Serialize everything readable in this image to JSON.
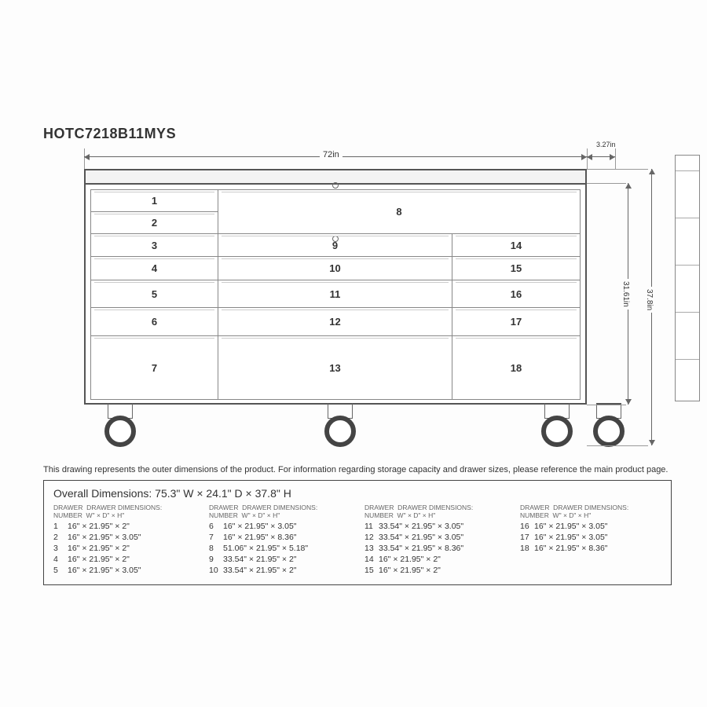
{
  "model": "HOTC7218B11MYS",
  "dims": {
    "top_main": "72in",
    "top_side": "3.27in",
    "right_inner": "31.61in",
    "right_outer": "37.8in"
  },
  "note": "This drawing represents the outer dimensions of the product. For information regarding storage capacity and drawer sizes, please reference the main product page.",
  "overall": "Overall Dimensions: 75.3\" W × 24.1\" D × 37.8\" H",
  "col_header": "DRAWER  DRAWER DIMENSIONS:\nNUMBER  W\" × D\" × H\"",
  "drawers": [
    {
      "n": "1",
      "d": "16\" × 21.95\" × 2\""
    },
    {
      "n": "2",
      "d": "16\" × 21.95\" × 3.05\""
    },
    {
      "n": "3",
      "d": "16\" × 21.95\" × 2\""
    },
    {
      "n": "4",
      "d": "16\" × 21.95\" × 2\""
    },
    {
      "n": "5",
      "d": "16\" × 21.95\" × 3.05\""
    },
    {
      "n": "6",
      "d": "16\" × 21.95\" × 3.05\""
    },
    {
      "n": "7",
      "d": "16\" × 21.95\" × 8.36\""
    },
    {
      "n": "8",
      "d": "51.06\" × 21.95\" × 5.18\""
    },
    {
      "n": "9",
      "d": "33.54\" × 21.95\" × 2\""
    },
    {
      "n": "10",
      "d": "33.54\" × 21.95\" × 2\""
    },
    {
      "n": "11",
      "d": "33.54\" × 21.95\" × 3.05\""
    },
    {
      "n": "12",
      "d": "33.54\" × 21.95\" × 3.05\""
    },
    {
      "n": "13",
      "d": "33.54\" × 21.95\" × 8.36\""
    },
    {
      "n": "14",
      "d": "16\" × 21.95\" × 2\""
    },
    {
      "n": "15",
      "d": "16\" × 21.95\" × 2\""
    },
    {
      "n": "16",
      "d": "16\" × 21.95\" × 3.05\""
    },
    {
      "n": "17",
      "d": "16\" × 21.95\" × 3.05\""
    },
    {
      "n": "18",
      "d": "16\" × 21.95\" × 8.36\""
    }
  ],
  "labels": {
    "d1": "1",
    "d2": "2",
    "d3": "3",
    "d4": "4",
    "d5": "5",
    "d6": "6",
    "d7": "7",
    "d8": "8",
    "d9": "9",
    "d10": "10",
    "d11": "11",
    "d12": "12",
    "d13": "13",
    "d14": "14",
    "d15": "15",
    "d16": "16",
    "d17": "17",
    "d18": "18"
  },
  "layout": {
    "stroke": "#555",
    "thin": "#888",
    "bg": "#fdfdfd",
    "fontsize_label": 13,
    "fontsize_dim": 11
  }
}
